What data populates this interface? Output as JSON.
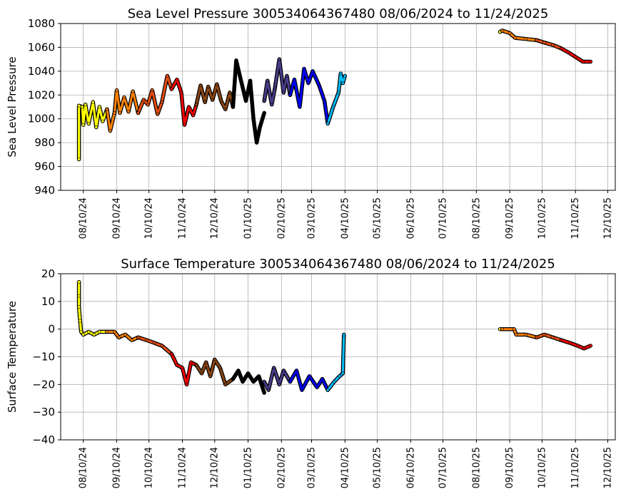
{
  "chart_data": [
    {
      "type": "scatter",
      "title": "Sea Level Pressure 300534064367480  08/06/2024 to 11/24/2025",
      "xlabel": "",
      "ylabel": "Sea Level Pressure",
      "xlim": [
        "2024-07-20",
        "2025-12-17"
      ],
      "ylim": [
        940,
        1080
      ],
      "yticks": [
        "940",
        "960",
        "980",
        "1000",
        "1020",
        "1040",
        "1060",
        "1080"
      ],
      "xticks": [
        "08/10/24",
        "09/10/24",
        "10/10/24",
        "11/10/24",
        "12/10/24",
        "01/10/25",
        "02/10/25",
        "03/10/25",
        "04/10/25",
        "05/10/25",
        "06/10/25",
        "07/10/25",
        "08/10/25",
        "09/10/25",
        "10/10/25",
        "11/10/25",
        "12/10/25"
      ],
      "grid": true,
      "series": [
        {
          "color": "#ffff00",
          "points": [
            [
              "2024-08-06",
              966
            ],
            [
              "2024-08-06",
              1011
            ],
            [
              "2024-08-09",
              1010
            ],
            [
              "2024-08-10",
              995
            ],
            [
              "2024-08-12",
              1012
            ],
            [
              "2024-08-15",
              996
            ],
            [
              "2024-08-19",
              1014
            ],
            [
              "2024-08-22",
              993
            ],
            [
              "2024-08-25",
              1010
            ],
            [
              "2024-08-28",
              998
            ],
            [
              "2024-09-01",
              1008
            ]
          ]
        },
        {
          "color": "#ff8000",
          "points": [
            [
              "2024-09-01",
              1008
            ],
            [
              "2024-09-04",
              990
            ],
            [
              "2024-09-08",
              1005
            ],
            [
              "2024-09-10",
              1024
            ],
            [
              "2024-09-13",
              1005
            ],
            [
              "2024-09-17",
              1018
            ],
            [
              "2024-09-21",
              1006
            ],
            [
              "2024-09-25",
              1023
            ],
            [
              "2024-09-30",
              1005
            ]
          ]
        },
        {
          "color": "#e84e10",
          "points": [
            [
              "2024-09-30",
              1005
            ],
            [
              "2024-10-05",
              1016
            ],
            [
              "2024-10-09",
              1012
            ],
            [
              "2024-10-13",
              1024
            ],
            [
              "2024-10-18",
              1004
            ],
            [
              "2024-10-22",
              1014
            ],
            [
              "2024-10-27",
              1036
            ],
            [
              "2024-10-31",
              1025
            ]
          ]
        },
        {
          "color": "#ff0000",
          "points": [
            [
              "2024-10-31",
              1025
            ],
            [
              "2024-11-05",
              1033
            ],
            [
              "2024-11-09",
              1022
            ],
            [
              "2024-11-12",
              995
            ],
            [
              "2024-11-16",
              1010
            ],
            [
              "2024-11-20",
              1003
            ],
            [
              "2024-11-23",
              1012
            ]
          ]
        },
        {
          "color": "#8b4513",
          "points": [
            [
              "2024-11-23",
              1012
            ],
            [
              "2024-11-27",
              1028
            ],
            [
              "2024-12-01",
              1014
            ],
            [
              "2024-12-04",
              1027
            ],
            [
              "2024-12-08",
              1016
            ],
            [
              "2024-12-12",
              1029
            ],
            [
              "2024-12-16",
              1015
            ],
            [
              "2024-12-20",
              1008
            ],
            [
              "2024-12-24",
              1022
            ],
            [
              "2024-12-27",
              1010
            ]
          ]
        },
        {
          "color": "#000000",
          "points": [
            [
              "2024-12-27",
              1010
            ],
            [
              "2024-12-30",
              1049
            ],
            [
              "2025-01-04",
              1030
            ],
            [
              "2025-01-08",
              1015
            ],
            [
              "2025-01-12",
              1032
            ],
            [
              "2025-01-15",
              1000
            ],
            [
              "2025-01-18",
              980
            ],
            [
              "2025-01-21",
              993
            ],
            [
              "2025-01-25",
              1005
            ]
          ]
        },
        {
          "color": "#483d8b",
          "points": [
            [
              "2025-01-25",
              1015
            ],
            [
              "2025-01-28",
              1032
            ],
            [
              "2025-02-01",
              1012
            ],
            [
              "2025-02-04",
              1026
            ],
            [
              "2025-02-08",
              1050
            ],
            [
              "2025-02-12",
              1022
            ],
            [
              "2025-02-15",
              1036
            ],
            [
              "2025-02-18",
              1020
            ]
          ]
        },
        {
          "color": "#0000ff",
          "points": [
            [
              "2025-02-18",
              1020
            ],
            [
              "2025-02-22",
              1033
            ],
            [
              "2025-02-27",
              1010
            ],
            [
              "2025-03-03",
              1042
            ],
            [
              "2025-03-07",
              1030
            ],
            [
              "2025-03-11",
              1040
            ],
            [
              "2025-03-17",
              1028
            ],
            [
              "2025-03-22",
              1015
            ],
            [
              "2025-03-25",
              996
            ]
          ]
        },
        {
          "color": "#00bfff",
          "points": [
            [
              "2025-03-25",
              996
            ],
            [
              "2025-03-30",
              1010
            ],
            [
              "2025-04-04",
              1022
            ],
            [
              "2025-04-06",
              1038
            ],
            [
              "2025-04-08",
              1030
            ],
            [
              "2025-04-10",
              1036
            ]
          ]
        },
        {
          "color": "#ffff00",
          "points": [
            [
              "2025-09-01",
              1073
            ],
            [
              "2025-09-03",
              1074
            ]
          ]
        },
        {
          "color": "#ff8000",
          "points": [
            [
              "2025-09-03",
              1074
            ],
            [
              "2025-09-10",
              1072
            ],
            [
              "2025-09-15",
              1068
            ],
            [
              "2025-09-25",
              1067
            ],
            [
              "2025-10-05",
              1066
            ]
          ]
        },
        {
          "color": "#e84e10",
          "points": [
            [
              "2025-10-05",
              1066
            ],
            [
              "2025-10-12",
              1064
            ],
            [
              "2025-10-20",
              1062
            ],
            [
              "2025-10-28",
              1059
            ]
          ]
        },
        {
          "color": "#ff0000",
          "points": [
            [
              "2025-10-28",
              1059
            ],
            [
              "2025-11-03",
              1056
            ],
            [
              "2025-11-10",
              1052
            ],
            [
              "2025-11-17",
              1048
            ],
            [
              "2025-11-24",
              1048
            ]
          ]
        }
      ]
    },
    {
      "type": "scatter",
      "title": "Surface Temperature 300534064367480  08/06/2024 to 11/24/2025",
      "xlabel": "",
      "ylabel": "Surface Temperature",
      "xlim": [
        "2024-07-20",
        "2025-12-17"
      ],
      "ylim": [
        -40,
        20
      ],
      "yticks": [
        "−40",
        "−30",
        "−20",
        "−10",
        "0",
        "10",
        "20"
      ],
      "xticks": [
        "08/10/24",
        "09/10/24",
        "10/10/24",
        "11/10/24",
        "12/10/24",
        "01/10/25",
        "02/10/25",
        "03/10/25",
        "04/10/25",
        "05/10/25",
        "06/10/25",
        "07/10/25",
        "08/10/25",
        "09/10/25",
        "10/10/25",
        "11/10/25",
        "12/10/25"
      ],
      "grid": true,
      "series": [
        {
          "color": "#ffff00",
          "points": [
            [
              "2024-08-06",
              17
            ],
            [
              "2024-08-06",
              12
            ],
            [
              "2024-08-06",
              8
            ],
            [
              "2024-08-07",
              3
            ],
            [
              "2024-08-08",
              -1
            ],
            [
              "2024-08-10",
              -2
            ],
            [
              "2024-08-15",
              -1
            ],
            [
              "2024-08-20",
              -2
            ],
            [
              "2024-08-25",
              -1
            ],
            [
              "2024-09-01",
              -1
            ]
          ]
        },
        {
          "color": "#ff8000",
          "points": [
            [
              "2024-09-01",
              -1
            ],
            [
              "2024-09-08",
              -1
            ],
            [
              "2024-09-12",
              -3
            ],
            [
              "2024-09-18",
              -2
            ],
            [
              "2024-09-24",
              -4
            ],
            [
              "2024-09-30",
              -3
            ]
          ]
        },
        {
          "color": "#e84e10",
          "points": [
            [
              "2024-09-30",
              -3
            ],
            [
              "2024-10-08",
              -4
            ],
            [
              "2024-10-15",
              -5
            ],
            [
              "2024-10-22",
              -6
            ],
            [
              "2024-10-31",
              -9
            ]
          ]
        },
        {
          "color": "#ff0000",
          "points": [
            [
              "2024-10-31",
              -9
            ],
            [
              "2024-11-05",
              -13
            ],
            [
              "2024-11-10",
              -14
            ],
            [
              "2024-11-14",
              -20
            ],
            [
              "2024-11-18",
              -12
            ],
            [
              "2024-11-23",
              -13
            ]
          ]
        },
        {
          "color": "#8b4513",
          "points": [
            [
              "2024-11-23",
              -13
            ],
            [
              "2024-11-28",
              -16
            ],
            [
              "2024-12-02",
              -12
            ],
            [
              "2024-12-06",
              -17
            ],
            [
              "2024-12-10",
              -11
            ],
            [
              "2024-12-15",
              -14
            ],
            [
              "2024-12-20",
              -20
            ],
            [
              "2024-12-27",
              -18
            ]
          ]
        },
        {
          "color": "#000000",
          "points": [
            [
              "2024-12-27",
              -18
            ],
            [
              "2025-01-01",
              -15
            ],
            [
              "2025-01-05",
              -19
            ],
            [
              "2025-01-10",
              -16
            ],
            [
              "2025-01-15",
              -19
            ],
            [
              "2025-01-20",
              -17
            ],
            [
              "2025-01-25",
              -23
            ]
          ]
        },
        {
          "color": "#483d8b",
          "points": [
            [
              "2025-01-25",
              -19
            ],
            [
              "2025-01-29",
              -22
            ],
            [
              "2025-02-03",
              -14
            ],
            [
              "2025-02-08",
              -20
            ],
            [
              "2025-02-12",
              -15
            ],
            [
              "2025-02-18",
              -19
            ]
          ]
        },
        {
          "color": "#0000ff",
          "points": [
            [
              "2025-02-18",
              -19
            ],
            [
              "2025-02-24",
              -15
            ],
            [
              "2025-03-01",
              -22
            ],
            [
              "2025-03-08",
              -17
            ],
            [
              "2025-03-15",
              -21
            ],
            [
              "2025-03-20",
              -18
            ],
            [
              "2025-03-25",
              -22
            ]
          ]
        },
        {
          "color": "#00bfff",
          "points": [
            [
              "2025-03-25",
              -22
            ],
            [
              "2025-03-31",
              -19
            ],
            [
              "2025-04-05",
              -17
            ],
            [
              "2025-04-08",
              -16
            ],
            [
              "2025-04-09",
              -2
            ]
          ]
        },
        {
          "color": "#ffff00",
          "points": [
            [
              "2025-09-01",
              0
            ],
            [
              "2025-09-03",
              0
            ]
          ]
        },
        {
          "color": "#ff8000",
          "points": [
            [
              "2025-09-03",
              0
            ],
            [
              "2025-09-14",
              0
            ],
            [
              "2025-09-16",
              -2
            ],
            [
              "2025-09-25",
              -2
            ],
            [
              "2025-10-05",
              -3
            ]
          ]
        },
        {
          "color": "#e84e10",
          "points": [
            [
              "2025-10-05",
              -3
            ],
            [
              "2025-10-12",
              -2
            ],
            [
              "2025-10-20",
              -3
            ],
            [
              "2025-10-28",
              -4
            ]
          ]
        },
        {
          "color": "#ff0000",
          "points": [
            [
              "2025-10-28",
              -4
            ],
            [
              "2025-11-05",
              -5
            ],
            [
              "2025-11-12",
              -6
            ],
            [
              "2025-11-18",
              -7
            ],
            [
              "2025-11-24",
              -6
            ]
          ]
        }
      ]
    }
  ]
}
